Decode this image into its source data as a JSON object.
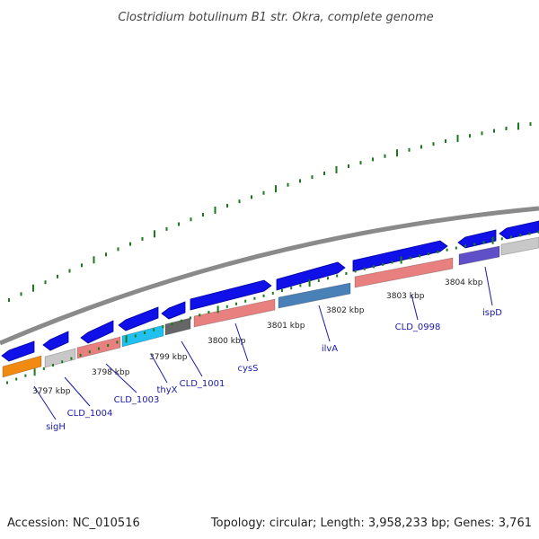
{
  "title": "Clostridium botulinum B1 str. Okra, complete genome",
  "footer": {
    "accession": "Accession: NC_010516",
    "summary": "Topology: circular; Length: 3,958,233 bp; Genes: 3,761"
  },
  "scale_labels": [
    "3797 kbp",
    "3798 kbp",
    "3799 kbp",
    "3800 kbp",
    "3801 kbp",
    "3802 kbp",
    "3803 kbp",
    "3804 kbp"
  ],
  "gene_labels": [
    "sigH",
    "CLD_1004",
    "CLD_1003",
    "thyX",
    "CLD_1001",
    "cysS",
    "ilvA",
    "CLD_0998",
    "ispD"
  ],
  "colors": {
    "cds_blue": "#1010e8",
    "backbone": "#888888",
    "tick_green": "#1a7a1a",
    "gene_label": "#1a1aa8",
    "orange": "#f08a10",
    "salmon": "#e88080",
    "cyan": "#20c0f0",
    "steel": "#4a80b8",
    "purple": "#6050c8",
    "dark_gray": "#666666",
    "light_gray": "#c8c8c8"
  }
}
